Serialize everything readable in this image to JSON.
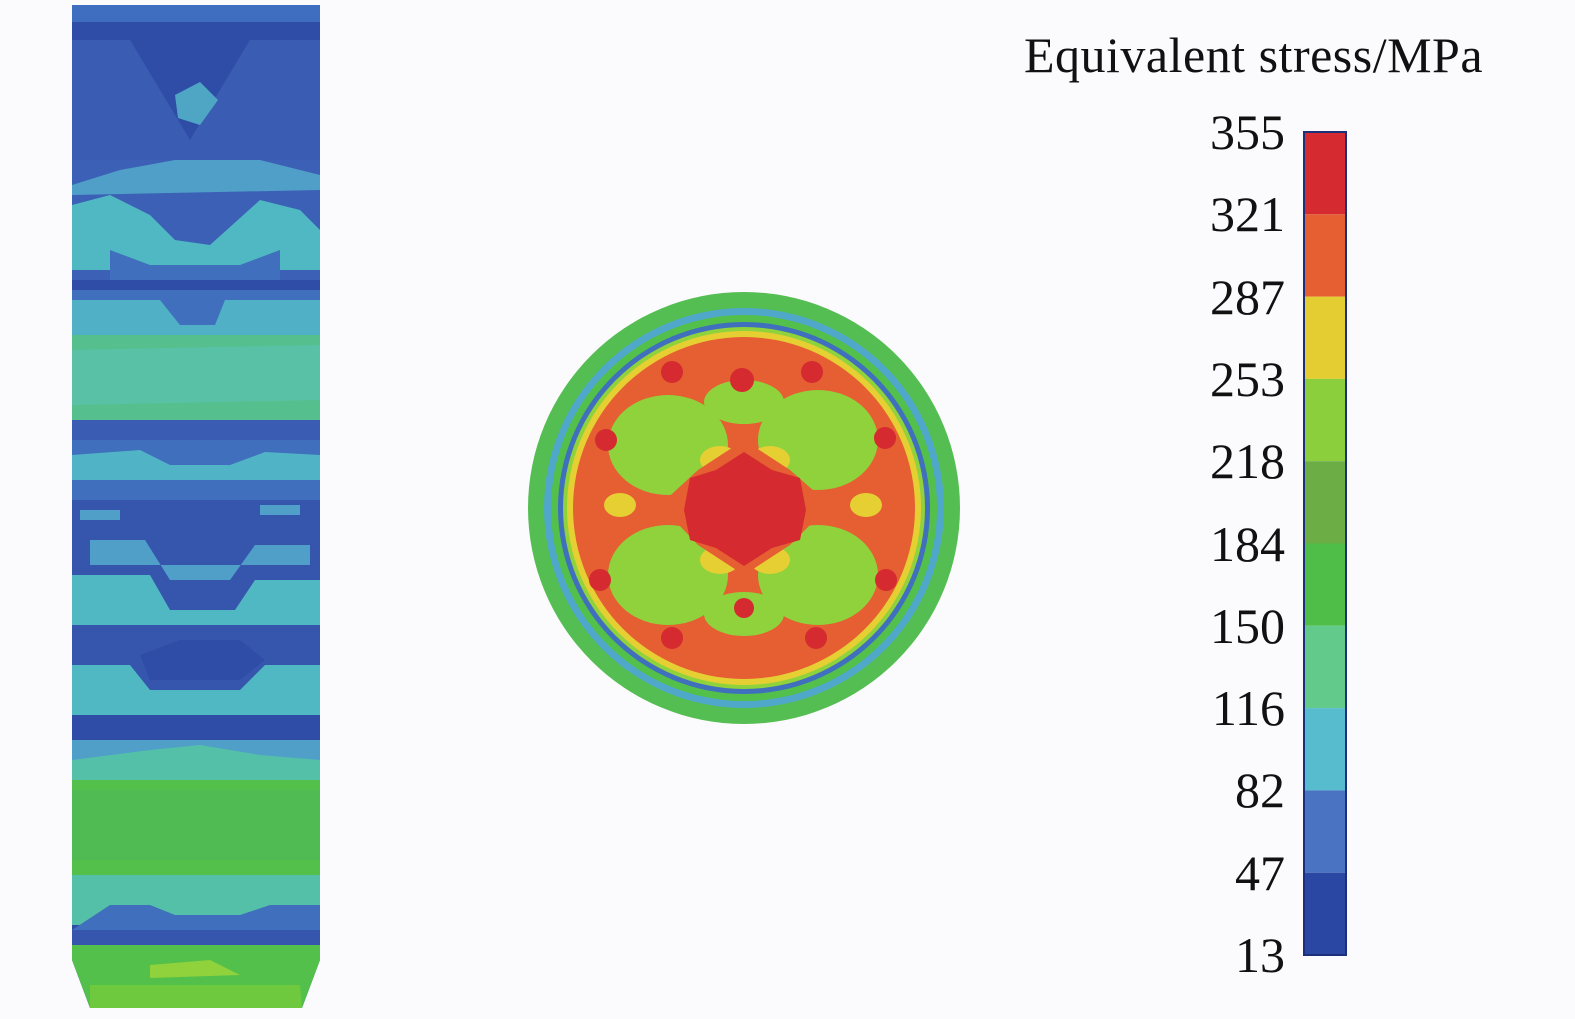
{
  "legend": {
    "title": "Equivalent stress/MPa",
    "ticks": [
      "355",
      "321",
      "287",
      "253",
      "218",
      "184",
      "150",
      "116",
      "82",
      "47",
      "13"
    ],
    "band_colors": [
      "#d42a30",
      "#e55f32",
      "#e3cd32",
      "#8ccf3c",
      "#6cad46",
      "#4fbe48",
      "#62ca8a",
      "#58bccf",
      "#4a74c2",
      "#2b47a4"
    ]
  },
  "palette": {
    "deep_blue": "#2f4da6",
    "blue": "#3c62b8",
    "cyan": "#4fb7c8",
    "teal": "#5cc4b2",
    "green": "#52c04a",
    "light_green": "#8fd23c",
    "yellow": "#e6cf33",
    "orange": "#e55f32",
    "red": "#d42a30"
  },
  "views": [
    {
      "name": "side-view"
    },
    {
      "name": "cross-section-view"
    }
  ]
}
